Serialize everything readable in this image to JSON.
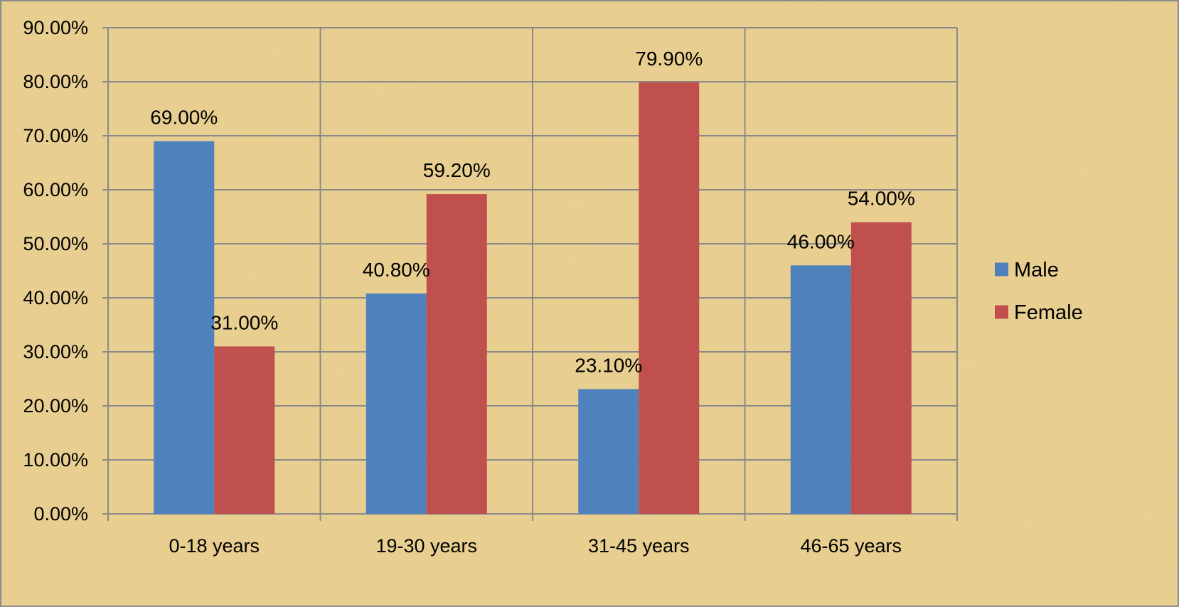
{
  "chart_data": {
    "type": "bar",
    "categories": [
      "0-18 years",
      "19-30 years",
      "31-45 years",
      "46-65 years"
    ],
    "series": [
      {
        "name": "Male",
        "values": [
          69.0,
          40.8,
          23.1,
          46.0
        ],
        "color": "#4F81BD"
      },
      {
        "name": "Female",
        "values": [
          31.0,
          59.2,
          79.9,
          54.0
        ],
        "color": "#C0504D"
      }
    ],
    "data_labels": [
      [
        "69.00%",
        "40.80%",
        "23.10%",
        "46.00%"
      ],
      [
        "31.00%",
        "59.20%",
        "79.90%",
        "54.00%"
      ]
    ],
    "y_tick_labels": [
      "0.00%",
      "10.00%",
      "20.00%",
      "30.00%",
      "40.00%",
      "50.00%",
      "60.00%",
      "70.00%",
      "80.00%",
      "90.00%"
    ],
    "ylim": [
      0,
      90
    ],
    "y_unit": "%",
    "title": "",
    "xlabel": "",
    "ylabel": "",
    "grid": true,
    "legend_position": "right",
    "background": "parchment texture",
    "colors": {
      "background": "#E8CF90",
      "gridline": "#8A8A8A",
      "frame": "#8C8C8C"
    }
  }
}
